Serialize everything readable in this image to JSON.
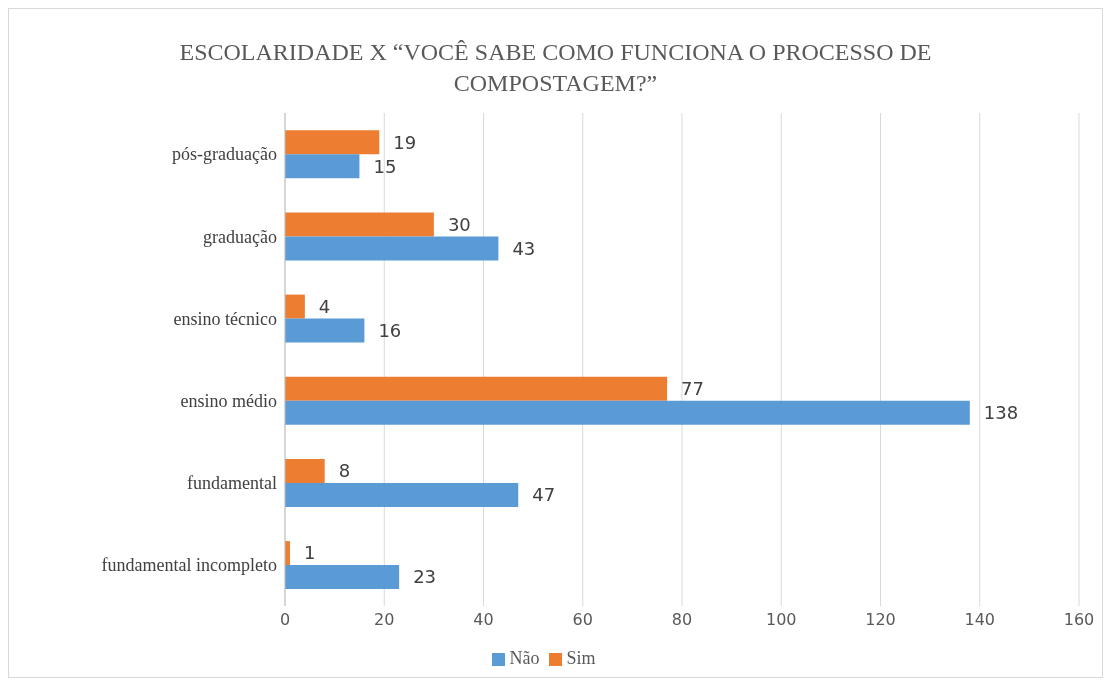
{
  "chart_data": {
    "type": "bar",
    "orientation": "horizontal",
    "title": "ESCOLARIDADE  X “VOCÊ SABE COMO FUNCIONA O PROCESSO DE COMPOSTAGEM?”",
    "categories": [
      "pós-graduação",
      "graduação",
      "ensino técnico",
      "ensino médio",
      "fundamental",
      "fundamental incompleto"
    ],
    "series": [
      {
        "name": "Sim",
        "color": "#ed7d31",
        "values": [
          19,
          30,
          4,
          77,
          8,
          1
        ]
      },
      {
        "name": "Não",
        "color": "#5b9bd5",
        "values": [
          15,
          43,
          16,
          138,
          47,
          23
        ]
      }
    ],
    "xlim": [
      0,
      160
    ],
    "xticks": [
      0,
      20,
      40,
      60,
      80,
      100,
      120,
      140,
      160
    ],
    "grid": "x",
    "legend": "bottom",
    "data_labels": true
  }
}
